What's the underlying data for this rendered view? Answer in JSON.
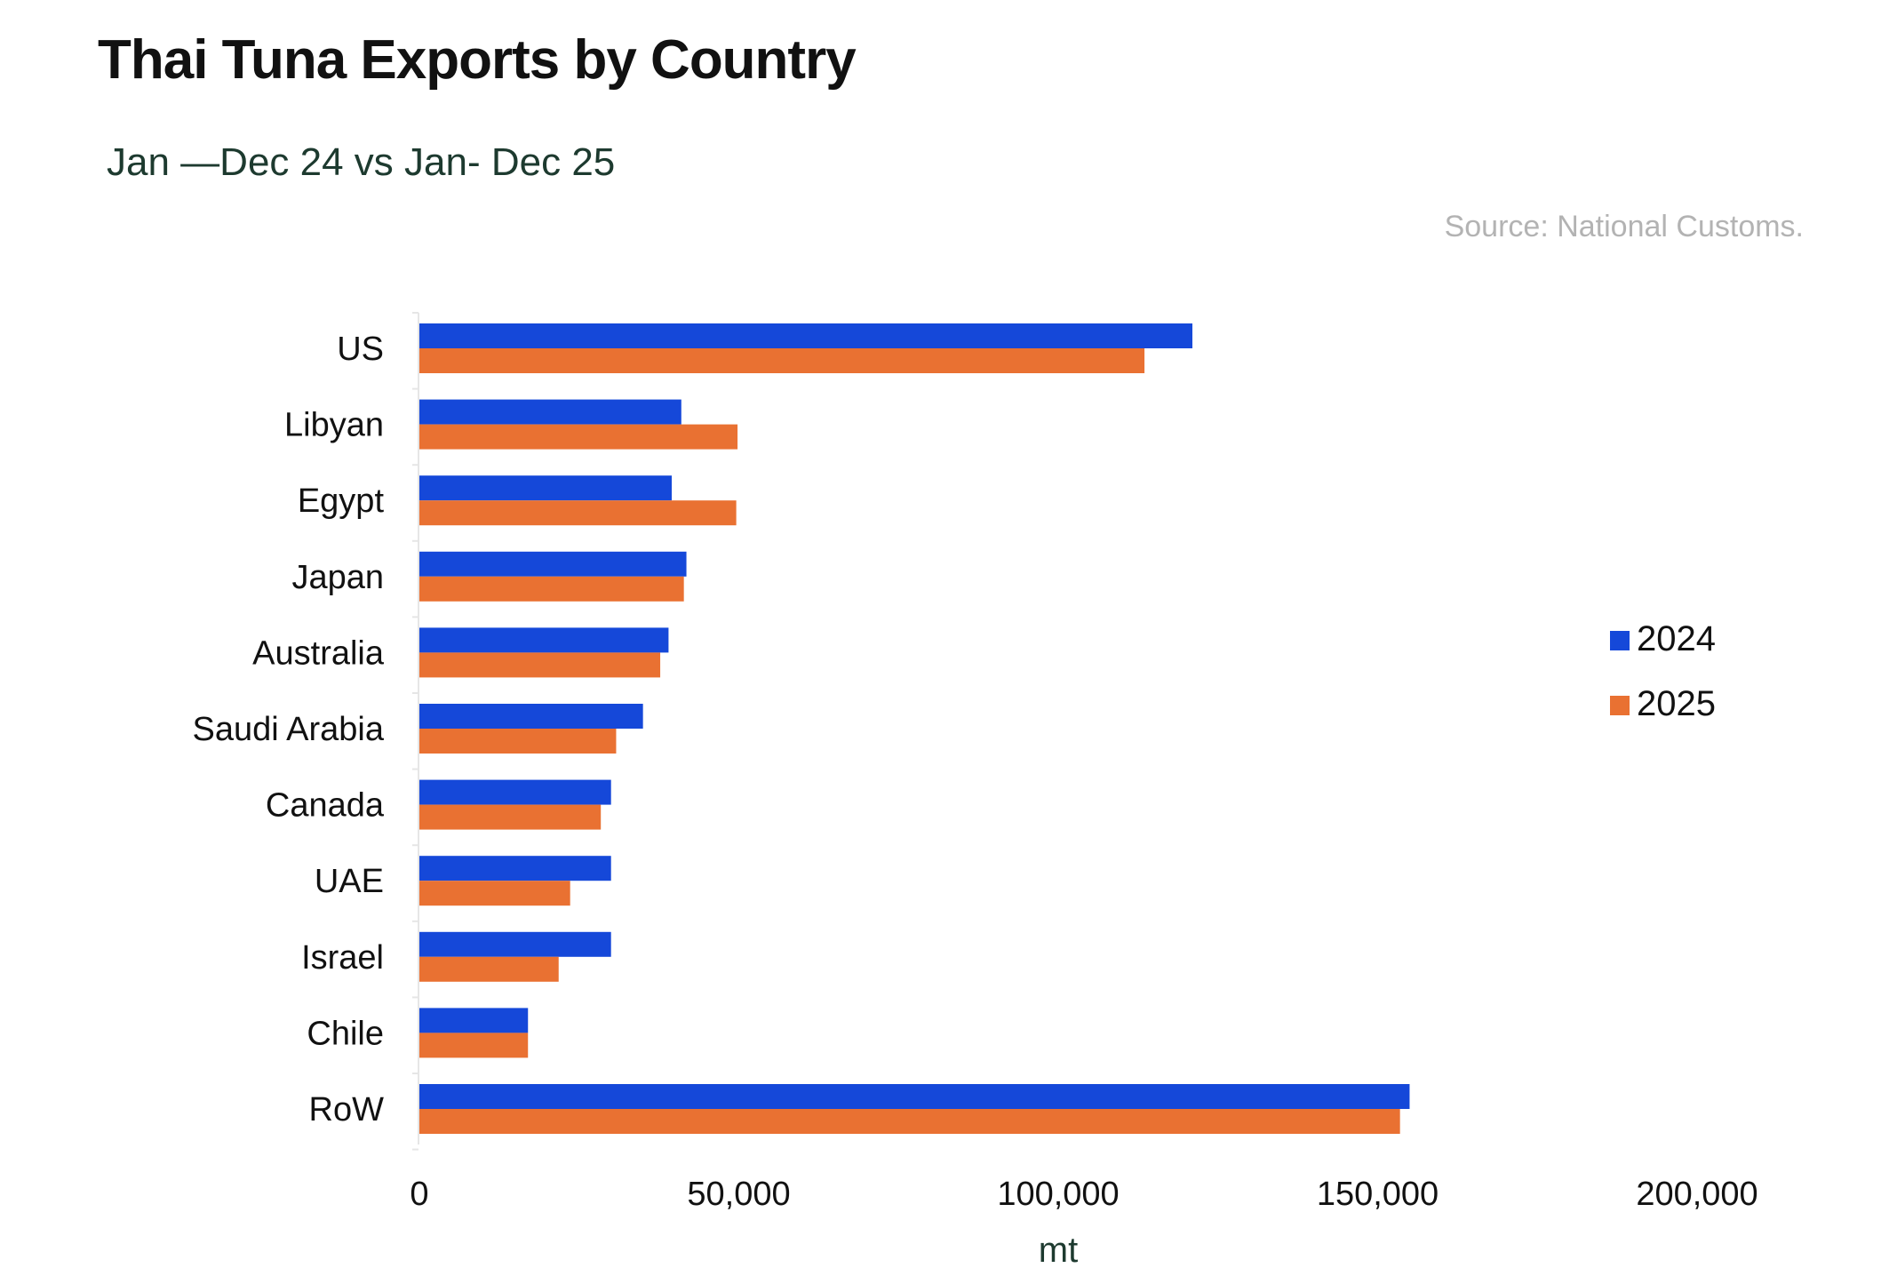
{
  "chart_data": {
    "type": "bar",
    "orientation": "horizontal",
    "title": "Thai Tuna Exports by Country",
    "subtitle": "Jan —Dec 24 vs Jan- Dec 25",
    "source": "Source: National Customs.",
    "categories": [
      "US",
      "Libyan",
      "Egypt",
      "Japan",
      "Australia",
      "Saudi Arabia",
      "Canada",
      "UAE",
      "Israel",
      "Chile",
      "RoW"
    ],
    "series": [
      {
        "name": "2024",
        "color": "#1548d9",
        "values": [
          121000,
          41000,
          39500,
          41800,
          39000,
          35000,
          30000,
          30000,
          30000,
          17000,
          155000
        ]
      },
      {
        "name": "2025",
        "color": "#e97132",
        "values": [
          113500,
          49800,
          49600,
          41400,
          37700,
          30800,
          28400,
          23600,
          21800,
          17000,
          153500
        ]
      }
    ],
    "xlabel": "mt",
    "xlim": [
      0,
      200000
    ],
    "xticks": [
      0,
      50000,
      100000,
      150000,
      200000
    ],
    "xtick_labels": [
      "0",
      "50,000",
      "100,000",
      "150,000",
      "200,000"
    ],
    "grid": false,
    "legend_position": "right"
  }
}
